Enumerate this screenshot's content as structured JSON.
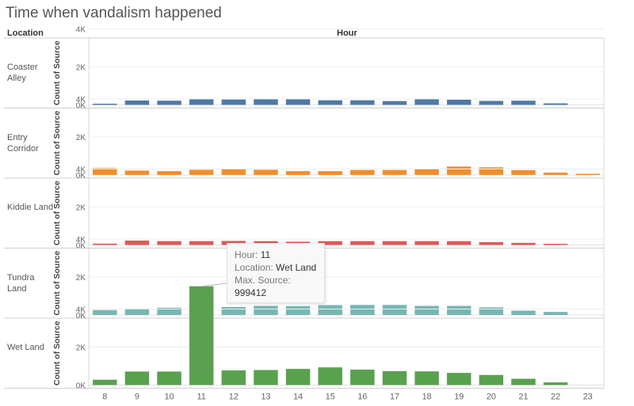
{
  "title": "Time when vandalism happened",
  "headers": {
    "location": "Location",
    "hour": "Hour"
  },
  "chart_data": {
    "type": "bar",
    "x_label": "Hour",
    "y_label": "Count of Source",
    "x_categories": [
      "8",
      "9",
      "10",
      "11",
      "12",
      "13",
      "14",
      "15",
      "16",
      "17",
      "18",
      "19",
      "20",
      "21",
      "22",
      "23"
    ],
    "y_ticks": [
      "0K",
      "2K",
      "4K"
    ],
    "ylim": [
      0,
      5200
    ],
    "panels": [
      {
        "location": "Coaster Alley",
        "color": "#4e79a7",
        "values": [
          60,
          230,
          220,
          290,
          280,
          290,
          290,
          240,
          240,
          200,
          300,
          270,
          210,
          220,
          80,
          0
        ]
      },
      {
        "location": "Entry Corridor",
        "color": "#f28e2b",
        "values": [
          360,
          230,
          200,
          270,
          310,
          270,
          200,
          200,
          260,
          260,
          330,
          440,
          400,
          250,
          120,
          60
        ]
      },
      {
        "location": "Kiddie Land",
        "color": "#e15759",
        "values": [
          70,
          230,
          200,
          200,
          210,
          200,
          170,
          200,
          200,
          200,
          200,
          200,
          150,
          110,
          60,
          0
        ]
      },
      {
        "location": "Tundra Land",
        "color": "#76b7b2",
        "values": [
          260,
          340,
          380,
          480,
          420,
          480,
          470,
          520,
          530,
          530,
          480,
          480,
          400,
          230,
          160,
          0
        ]
      },
      {
        "location": "Wet Land",
        "color": "#59a14f",
        "values": [
          280,
          710,
          710,
          5400,
          770,
          790,
          850,
          930,
          810,
          730,
          720,
          640,
          530,
          330,
          140,
          0
        ]
      }
    ]
  },
  "tooltip": {
    "hour_label": "Hour:",
    "hour_value": "11",
    "location_label": "Location:",
    "location_value": "Wet Land",
    "max_label": "Max. Source:",
    "max_value": "999412"
  }
}
